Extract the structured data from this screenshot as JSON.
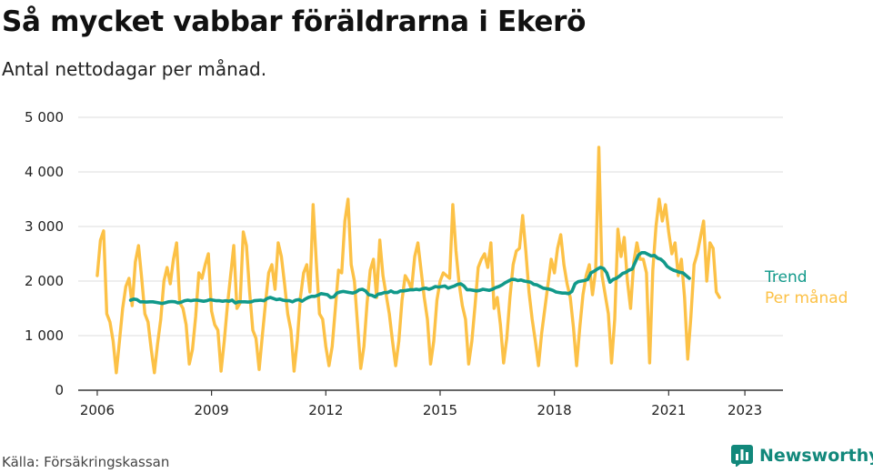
{
  "title": "Så mycket vabbar föräldrarna i Ekerö",
  "subtitle": "Antal nettodagar per månad.",
  "source": "Källa: Försäkringskassan",
  "brand": "Newsworthy",
  "icons": {
    "brand_logo": "bar-chart-icon"
  },
  "colors": {
    "trend": "#11998a",
    "per_month": "#fcc146",
    "brand": "#12887b",
    "grid": "#dddddd",
    "axis": "#333333"
  },
  "chart_data": {
    "type": "line",
    "x_unit": "decimal-year (monthly data)",
    "ylim": [
      0,
      5000
    ],
    "xlim": [
      2005.5,
      2024.0
    ],
    "yticks": [
      0,
      1000,
      2000,
      3000,
      4000,
      5000
    ],
    "ytick_labels": [
      "0",
      "1 000",
      "2 000",
      "3 000",
      "4 000",
      "5 000"
    ],
    "xticks": [
      2006,
      2009,
      2012,
      2015,
      2018,
      2021,
      2023
    ],
    "xtick_labels": [
      "2006",
      "2009",
      "2012",
      "2015",
      "2018",
      "2021",
      "2023"
    ],
    "grid": true,
    "legend_placement": "right-end",
    "series": [
      {
        "name": "Trend",
        "start": 2006.875,
        "values": [
          1650,
          1670,
          1660,
          1620,
          1620,
          1615,
          1620,
          1620,
          1610,
          1600,
          1590,
          1605,
          1620,
          1625,
          1620,
          1600,
          1615,
          1640,
          1650,
          1640,
          1650,
          1650,
          1640,
          1630,
          1640,
          1660,
          1650,
          1640,
          1640,
          1630,
          1640,
          1630,
          1650,
          1600,
          1620,
          1620,
          1620,
          1615,
          1620,
          1640,
          1645,
          1650,
          1640,
          1680,
          1700,
          1680,
          1660,
          1670,
          1650,
          1640,
          1640,
          1620,
          1650,
          1660,
          1630,
          1670,
          1700,
          1720,
          1720,
          1740,
          1770,
          1760,
          1750,
          1700,
          1710,
          1780,
          1800,
          1810,
          1800,
          1790,
          1780,
          1800,
          1840,
          1850,
          1820,
          1750,
          1740,
          1710,
          1760,
          1770,
          1790,
          1790,
          1820,
          1790,
          1790,
          1820,
          1820,
          1830,
          1840,
          1840,
          1850,
          1840,
          1860,
          1870,
          1850,
          1870,
          1900,
          1890,
          1900,
          1910,
          1870,
          1890,
          1910,
          1940,
          1950,
          1910,
          1840,
          1840,
          1830,
          1820,
          1830,
          1850,
          1840,
          1830,
          1850,
          1880,
          1900,
          1930,
          1970,
          2000,
          2030,
          2030,
          2010,
          2020,
          2000,
          1990,
          1980,
          1940,
          1930,
          1900,
          1870,
          1860,
          1850,
          1830,
          1800,
          1790,
          1780,
          1780,
          1770,
          1810,
          1950,
          1990,
          2000,
          2010,
          2030,
          2150,
          2180,
          2220,
          2250,
          2230,
          2150,
          1980,
          2030,
          2050,
          2090,
          2140,
          2160,
          2200,
          2220,
          2350,
          2480,
          2520,
          2520,
          2490,
          2460,
          2470,
          2420,
          2400,
          2350,
          2270,
          2230,
          2200,
          2180,
          2160,
          2150,
          2100,
          2050
        ]
      },
      {
        "name": "Per månad",
        "start": 2006.0,
        "values": [
          2100,
          2750,
          2920,
          1400,
          1250,
          900,
          320,
          900,
          1500,
          1900,
          2050,
          1550,
          2350,
          2650,
          2050,
          1400,
          1250,
          750,
          320,
          850,
          1300,
          2000,
          2250,
          1950,
          2400,
          2700,
          1600,
          1500,
          1200,
          480,
          750,
          1350,
          2150,
          2050,
          2300,
          2500,
          1450,
          1200,
          1100,
          350,
          900,
          1550,
          2100,
          2650,
          1500,
          1600,
          2900,
          2650,
          1800,
          1100,
          950,
          380,
          1000,
          1600,
          2150,
          2300,
          1850,
          2700,
          2450,
          1950,
          1400,
          1100,
          350,
          900,
          1700,
          2150,
          2300,
          1800,
          3400,
          2350,
          1400,
          1300,
          800,
          450,
          800,
          1500,
          2200,
          2150,
          3100,
          3500,
          2300,
          2000,
          1200,
          400,
          800,
          1600,
          2200,
          2400,
          1700,
          2750,
          2100,
          1750,
          1400,
          900,
          450,
          900,
          1650,
          2100,
          2000,
          1850,
          2450,
          2700,
          2200,
          1700,
          1300,
          480,
          900,
          1650,
          2000,
          2150,
          2100,
          2050,
          3400,
          2550,
          1950,
          1550,
          1300,
          480,
          900,
          1550,
          2250,
          2400,
          2500,
          2250,
          2700,
          1500,
          1700,
          1200,
          500,
          950,
          1700,
          2300,
          2550,
          2600,
          3200,
          2550,
          1800,
          1300,
          900,
          450,
          1050,
          1500,
          1950,
          2400,
          2150,
          2600,
          2850,
          2300,
          1950,
          1700,
          1150,
          450,
          1150,
          1750,
          2100,
          2300,
          1750,
          2200,
          4450,
          2100,
          1750,
          1400,
          500,
          1300,
          2950,
          2450,
          2800,
          2000,
          1500,
          2350,
          2700,
          2400,
          2400,
          2150,
          500,
          2200,
          3000,
          3500,
          3100,
          3400,
          2900,
          2500,
          2700,
          2100,
          2400,
          1700,
          570,
          1350,
          2300,
          2500,
          2800,
          3100,
          2000,
          2700,
          2600,
          1800,
          1700
        ]
      }
    ]
  }
}
